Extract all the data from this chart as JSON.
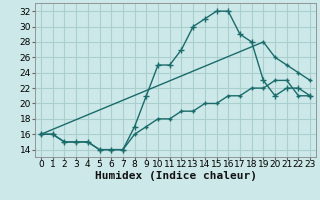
{
  "title": "",
  "xlabel": "Humidex (Indice chaleur)",
  "bg_color": "#cce8e8",
  "grid_color": "#aacfcf",
  "line_color": "#1a6b6b",
  "xlim": [
    -0.5,
    23.5
  ],
  "ylim": [
    13,
    33
  ],
  "xticks": [
    0,
    1,
    2,
    3,
    4,
    5,
    6,
    7,
    8,
    9,
    10,
    11,
    12,
    13,
    14,
    15,
    16,
    17,
    18,
    19,
    20,
    21,
    22,
    23
  ],
  "yticks": [
    14,
    16,
    18,
    20,
    22,
    24,
    26,
    28,
    30,
    32
  ],
  "line1_x": [
    0,
    1,
    2,
    3,
    4,
    5,
    6,
    7,
    8,
    9,
    10,
    11,
    12,
    13,
    14,
    15,
    16,
    17,
    18,
    19,
    20,
    21,
    22,
    23
  ],
  "line1_y": [
    16,
    16,
    15,
    15,
    15,
    14,
    14,
    14,
    17,
    21,
    25,
    25,
    27,
    30,
    31,
    32,
    32,
    29,
    28,
    23,
    21,
    22,
    22,
    21
  ],
  "line2_x": [
    0,
    1,
    2,
    3,
    4,
    5,
    6,
    7,
    8,
    9,
    10,
    11,
    12,
    13,
    14,
    15,
    16,
    17,
    18,
    19,
    20,
    21,
    22,
    23
  ],
  "line2_y": [
    16,
    16,
    15,
    15,
    15,
    14,
    14,
    14,
    16,
    17,
    18,
    18,
    19,
    19,
    20,
    20,
    21,
    21,
    22,
    22,
    23,
    23,
    21,
    21
  ],
  "line3_x": [
    0,
    19,
    20,
    21,
    22,
    23
  ],
  "line3_y": [
    16,
    28,
    26,
    25,
    24,
    23
  ],
  "xlabel_fontsize": 8,
  "tick_fontsize": 6.5
}
